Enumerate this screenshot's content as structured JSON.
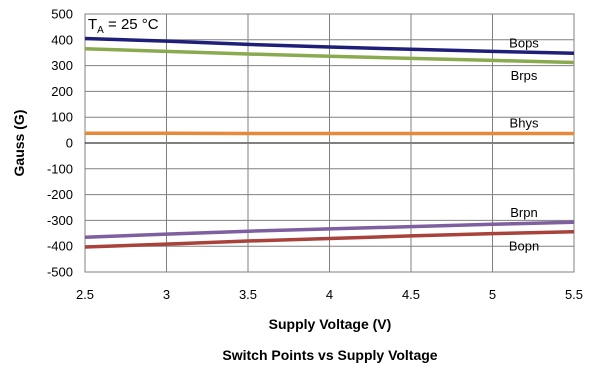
{
  "chart_data": {
    "type": "line",
    "title": "Switch Points vs Supply Voltage",
    "xlabel": "Supply Voltage (V)",
    "ylabel": "Gauss (G)",
    "xlim": [
      2.5,
      5.5
    ],
    "ylim": [
      -500,
      500
    ],
    "x_ticks": [
      "2.5",
      "3",
      "3.5",
      "4",
      "4.5",
      "5",
      "5.5"
    ],
    "y_ticks": [
      "500",
      "400",
      "300",
      "200",
      "100",
      "0",
      "-100",
      "-200",
      "-300",
      "-400",
      "-500"
    ],
    "grid": true,
    "annotation": {
      "main": "T",
      "sub": "A",
      "rest": " = 25 °C"
    },
    "x": [
      2.5,
      3,
      3.5,
      4,
      4.5,
      5,
      5.5
    ],
    "series": [
      {
        "name": "Bops",
        "color": "#1f1f7a",
        "values": [
          405,
          395,
          382,
          372,
          363,
          355,
          348
        ]
      },
      {
        "name": "Brps",
        "color": "#8aaa50",
        "values": [
          365,
          355,
          345,
          336,
          328,
          320,
          312
        ]
      },
      {
        "name": "Bhys",
        "color": "#e8893a",
        "values": [
          38,
          38,
          37,
          37,
          37,
          37,
          37
        ]
      },
      {
        "name": "Brpn",
        "color": "#7f5f9f",
        "values": [
          -365,
          -353,
          -342,
          -333,
          -324,
          -315,
          -307
        ]
      },
      {
        "name": "Bopn",
        "color": "#a8423a",
        "values": [
          -403,
          -392,
          -380,
          -370,
          -360,
          -351,
          -344
        ]
      }
    ]
  }
}
